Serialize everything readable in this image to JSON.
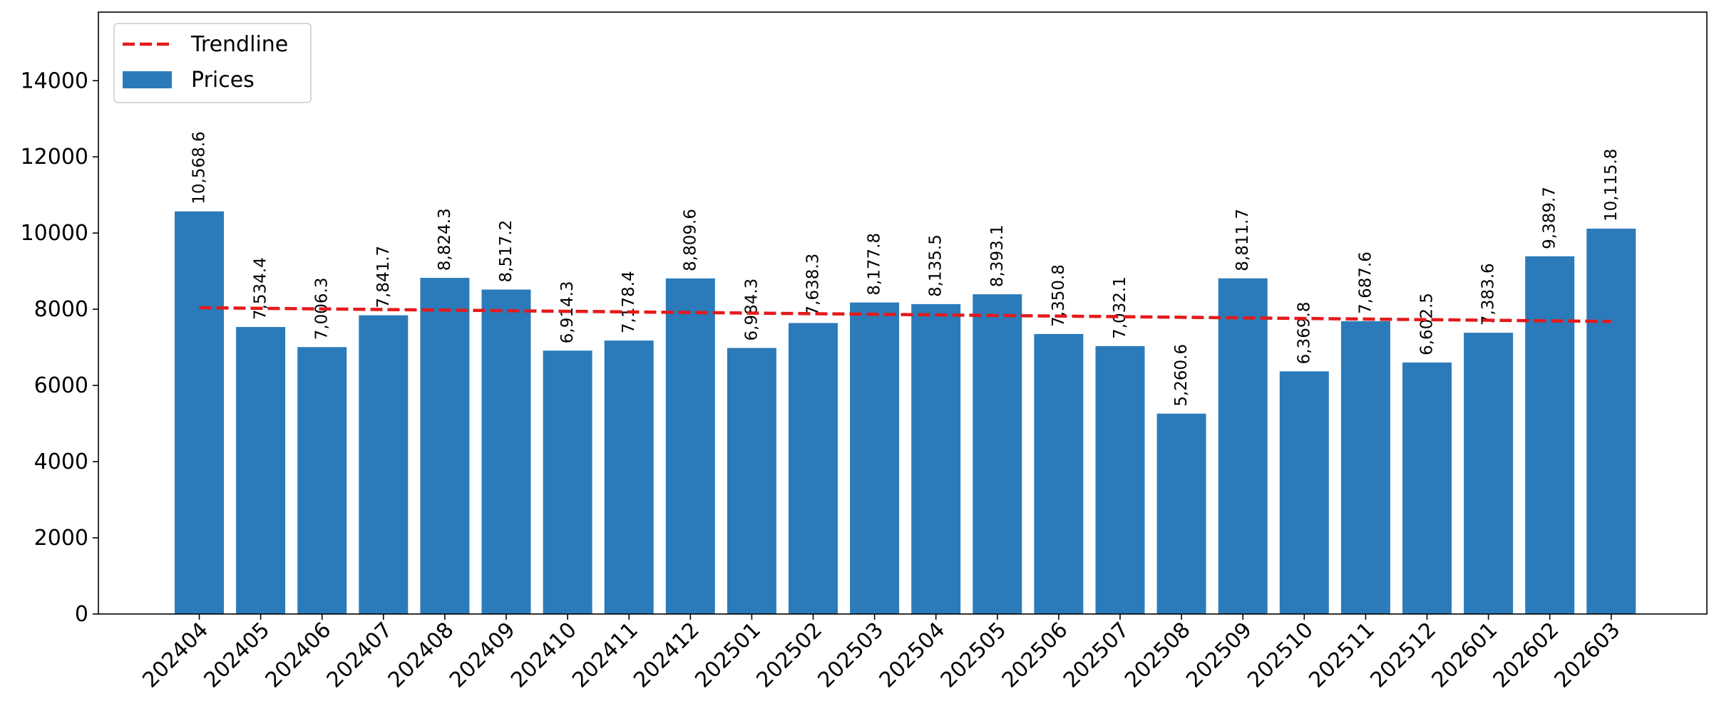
{
  "chart_data": {
    "type": "bar",
    "title": "",
    "xlabel": "",
    "ylabel": "",
    "categories": [
      "202404",
      "202405",
      "202406",
      "202407",
      "202408",
      "202409",
      "202410",
      "202411",
      "202412",
      "202501",
      "202502",
      "202503",
      "202504",
      "202505",
      "202506",
      "202507",
      "202508",
      "202509",
      "202510",
      "202511",
      "202512",
      "202601",
      "202602",
      "202603"
    ],
    "series": [
      {
        "name": "Prices",
        "color": "#2b7bba",
        "values": [
          10568.6,
          7534.4,
          7006.3,
          7841.7,
          8824.3,
          8517.2,
          6914.3,
          7178.4,
          8809.6,
          6984.3,
          7638.3,
          8177.8,
          8135.5,
          8393.1,
          7350.8,
          7032.1,
          5260.6,
          8811.7,
          6369.8,
          7687.6,
          6602.5,
          7383.6,
          9389.7,
          10115.8
        ],
        "labels": [
          "10,568.6",
          "7,534.4",
          "7,006.3",
          "7,841.7",
          "8,824.3",
          "8,517.2",
          "6,914.3",
          "7,178.4",
          "8,809.6",
          "6,984.3",
          "7,638.3",
          "8,177.8",
          "8,135.5",
          "8,393.1",
          "7,350.8",
          "7,032.1",
          "5,260.6",
          "8,811.7",
          "6,369.8",
          "7,687.6",
          "6,602.5",
          "7,383.6",
          "9,389.7",
          "10,115.8"
        ]
      }
    ],
    "trendline": {
      "name": "Trendline",
      "color": "#e31a1c",
      "style": "dashed",
      "start": 8040,
      "end": 7680
    },
    "ylim": [
      0,
      15800
    ],
    "yticks": [
      0,
      2000,
      4000,
      6000,
      8000,
      10000,
      12000,
      14000
    ],
    "grid": false,
    "legend": {
      "position": "top-left",
      "entries": [
        "Trendline",
        "Prices"
      ]
    }
  }
}
